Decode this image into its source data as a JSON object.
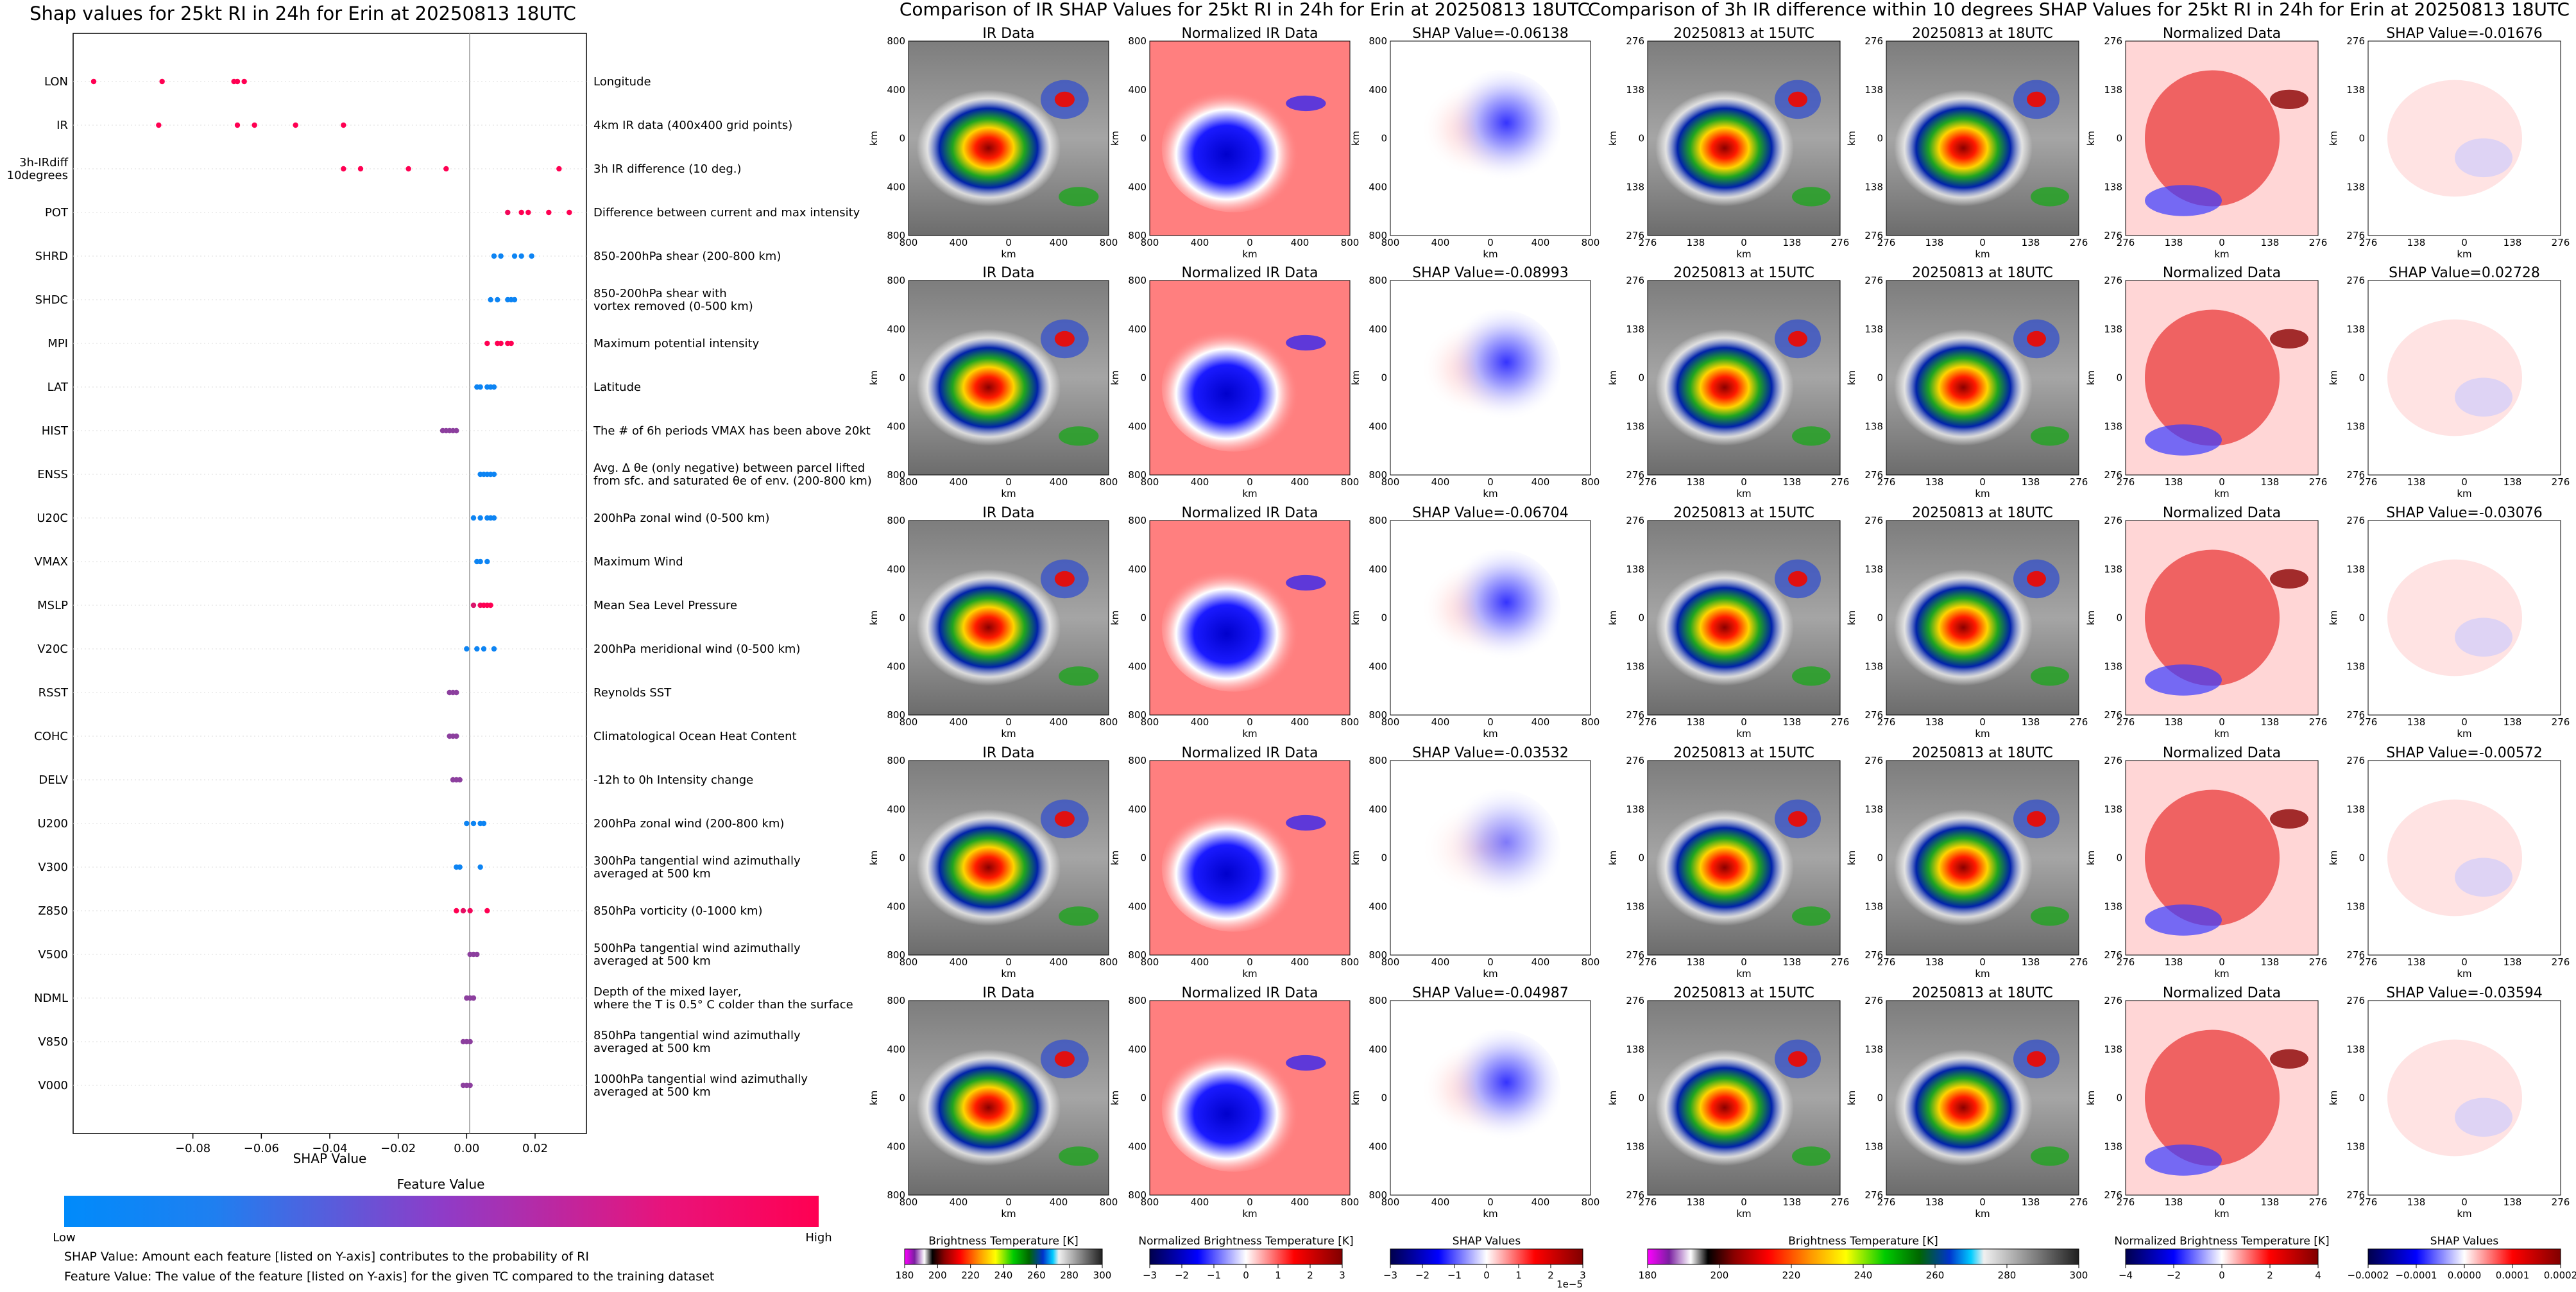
{
  "left_panel": {
    "title": "Shap values for 25kt RI in 24h for Erin at 20250813 18UTC",
    "xlabel": "SHAP Value",
    "xticks": [
      "−0.08",
      "−0.06",
      "−0.04",
      "−0.02",
      "0.00",
      "0.02"
    ],
    "colorbar_title": "Feature Value",
    "low_label": "Low",
    "high_label": "High",
    "note1": "SHAP Value: Amount each feature [listed on Y-axis] contributes to the probability of RI",
    "note2": "Feature Value: The value of the feature [listed on Y-axis] for the given TC compared to the training dataset"
  },
  "middle_panel": {
    "title": "Comparison of IR SHAP Values for 25kt RI in 24h for Erin at 20250813 18UTC",
    "col_titles": [
      "IR Data",
      "Normalized IR Data"
    ],
    "shap_titles": [
      "SHAP Value=-0.06138",
      "SHAP Value=-0.08993",
      "SHAP Value=-0.06704",
      "SHAP Value=-0.03532",
      "SHAP Value=-0.04987"
    ],
    "axis_label": "km",
    "ticks": [
      "800",
      "400",
      "0",
      "400",
      "800"
    ],
    "colorbars": [
      {
        "label": "Brightness Temperature [K]",
        "ticks": [
          "180",
          "200",
          "220",
          "240",
          "260",
          "280",
          "300"
        ]
      },
      {
        "label": "Normalized Brightness Temperature [K]",
        "ticks": [
          "−3",
          "−2",
          "−1",
          "0",
          "1",
          "2",
          "3"
        ]
      },
      {
        "label": "SHAP Values",
        "ticks": [
          "−3",
          "−2",
          "−1",
          "0",
          "1",
          "2",
          "3"
        ],
        "offset": "1e−5"
      }
    ]
  },
  "right_panel": {
    "title": "Comparison of 3h IR difference within 10 degrees SHAP Values for 25kt RI in 24h for Erin at 20250813 18UTC",
    "col_titles": [
      "20250813 at 15UTC",
      "20250813 at 18UTC",
      "Normalized Data"
    ],
    "shap_titles": [
      "SHAP Value=-0.01676",
      "SHAP Value=0.02728",
      "SHAP Value=-0.03076",
      "SHAP Value=-0.00572",
      "SHAP Value=-0.03594"
    ],
    "axis_label": "km",
    "ticks": [
      "276",
      "138",
      "0",
      "138",
      "276"
    ],
    "colorbars": [
      {
        "label": "Brightness Temperature [K]",
        "ticks": [
          "180",
          "200",
          "220",
          "240",
          "260",
          "280",
          "300"
        ]
      },
      {
        "label": "Normalized Brightness Temperature [K]",
        "ticks": [
          "−4",
          "−2",
          "0",
          "2",
          "4"
        ]
      },
      {
        "label": "SHAP Values",
        "ticks": [
          "−0.0002",
          "−0.0001",
          "0.0000",
          "0.0001",
          "0.0002"
        ]
      }
    ]
  },
  "chart_data": {
    "type": "scatter",
    "title": "Shap values for 25kt RI in 24h for Erin at 20250813 18UTC",
    "xlabel": "SHAP Value",
    "xlim": [
      -0.115,
      0.035
    ],
    "color_scale": {
      "low": "#008bfb",
      "high": "#ff0052",
      "title": "Feature Value"
    },
    "features": [
      {
        "name": "LON",
        "desc": "Longitude",
        "points": [
          [
            -0.109,
            1
          ],
          [
            -0.089,
            1
          ],
          [
            -0.068,
            1
          ],
          [
            -0.067,
            1
          ],
          [
            -0.065,
            1
          ]
        ]
      },
      {
        "name": "IR",
        "desc": "4km IR data (400x400 grid points)",
        "points": [
          [
            -0.09,
            1
          ],
          [
            -0.067,
            1
          ],
          [
            -0.062,
            1
          ],
          [
            -0.05,
            1
          ],
          [
            -0.036,
            1
          ]
        ]
      },
      {
        "name": "3h-IRdiff\n10degrees",
        "desc": "3h IR difference (10 deg.)",
        "points": [
          [
            -0.036,
            1
          ],
          [
            -0.031,
            1
          ],
          [
            -0.017,
            1
          ],
          [
            -0.006,
            1
          ],
          [
            0.027,
            1
          ]
        ]
      },
      {
        "name": "POT",
        "desc": "Difference between current and max intensity",
        "points": [
          [
            0.012,
            0.95
          ],
          [
            0.016,
            1
          ],
          [
            0.018,
            1
          ],
          [
            0.024,
            1
          ],
          [
            0.03,
            1
          ]
        ]
      },
      {
        "name": "SHRD",
        "desc": "850-200hPa shear (200-800 km)",
        "points": [
          [
            0.008,
            0.05
          ],
          [
            0.01,
            0.05
          ],
          [
            0.014,
            0.05
          ],
          [
            0.016,
            0.05
          ],
          [
            0.019,
            0.05
          ]
        ]
      },
      {
        "name": "SHDC",
        "desc": "850-200hPa shear with\nvortex removed (0-500 km)",
        "points": [
          [
            0.007,
            0.05
          ],
          [
            0.009,
            0.05
          ],
          [
            0.012,
            0.05
          ],
          [
            0.013,
            0.05
          ],
          [
            0.014,
            0.05
          ]
        ]
      },
      {
        "name": "MPI",
        "desc": "Maximum potential intensity",
        "points": [
          [
            0.006,
            1
          ],
          [
            0.009,
            1
          ],
          [
            0.01,
            1
          ],
          [
            0.012,
            1
          ],
          [
            0.013,
            1
          ]
        ]
      },
      {
        "name": "LAT",
        "desc": "Latitude",
        "points": [
          [
            0.003,
            0.05
          ],
          [
            0.004,
            0.05
          ],
          [
            0.006,
            0.05
          ],
          [
            0.007,
            0.05
          ],
          [
            0.008,
            0.05
          ]
        ]
      },
      {
        "name": "HIST",
        "desc": "The # of 6h periods VMAX has been above 20kt",
        "points": [
          [
            -0.007,
            0.55
          ],
          [
            -0.006,
            0.55
          ],
          [
            -0.005,
            0.55
          ],
          [
            -0.004,
            0.55
          ],
          [
            -0.003,
            0.55
          ]
        ]
      },
      {
        "name": "ENSS",
        "desc": "Avg. Δ θe (only negative) between parcel lifted\nfrom sfc. and saturated θe of env. (200-800 km)",
        "points": [
          [
            0.004,
            0.05
          ],
          [
            0.005,
            0.05
          ],
          [
            0.006,
            0.05
          ],
          [
            0.007,
            0.05
          ],
          [
            0.008,
            0.05
          ]
        ]
      },
      {
        "name": "U20C",
        "desc": "200hPa zonal wind (0-500 km)",
        "points": [
          [
            0.002,
            0.05
          ],
          [
            0.004,
            0.05
          ],
          [
            0.006,
            0.05
          ],
          [
            0.007,
            0.05
          ],
          [
            0.008,
            0.05
          ]
        ]
      },
      {
        "name": "VMAX",
        "desc": "Maximum Wind",
        "points": [
          [
            0.003,
            0.05
          ],
          [
            0.004,
            0.05
          ],
          [
            0.006,
            0.05
          ]
        ]
      },
      {
        "name": "MSLP",
        "desc": "Mean Sea Level Pressure",
        "points": [
          [
            0.002,
            0.85
          ],
          [
            0.004,
            0.95
          ],
          [
            0.005,
            1
          ],
          [
            0.006,
            1
          ],
          [
            0.007,
            1
          ]
        ]
      },
      {
        "name": "V20C",
        "desc": "200hPa meridional wind (0-500 km)",
        "points": [
          [
            0.0,
            0.05
          ],
          [
            0.003,
            0.05
          ],
          [
            0.005,
            0.05
          ],
          [
            0.008,
            0.05
          ]
        ]
      },
      {
        "name": "RSST",
        "desc": "Reynolds SST",
        "points": [
          [
            -0.005,
            0.55
          ],
          [
            -0.004,
            0.55
          ],
          [
            -0.003,
            0.55
          ]
        ]
      },
      {
        "name": "COHC",
        "desc": "Climatological Ocean Heat Content",
        "points": [
          [
            -0.005,
            0.55
          ],
          [
            -0.004,
            0.55
          ],
          [
            -0.003,
            0.55
          ]
        ]
      },
      {
        "name": "DELV",
        "desc": "-12h to 0h Intensity change",
        "points": [
          [
            -0.004,
            0.55
          ],
          [
            -0.003,
            0.55
          ],
          [
            -0.002,
            0.55
          ]
        ]
      },
      {
        "name": "U200",
        "desc": "200hPa zonal wind (200-800 km)",
        "points": [
          [
            0.0,
            0.05
          ],
          [
            0.002,
            0.05
          ],
          [
            0.004,
            0.05
          ],
          [
            0.005,
            0.05
          ]
        ]
      },
      {
        "name": "V300",
        "desc": "300hPa tangential wind azimuthally\naveraged at 500 km",
        "points": [
          [
            -0.003,
            0.05
          ],
          [
            -0.002,
            0.05
          ],
          [
            0.004,
            0.05
          ]
        ]
      },
      {
        "name": "Z850",
        "desc": "850hPa vorticity (0-1000 km)",
        "points": [
          [
            -0.003,
            1
          ],
          [
            -0.001,
            0.9
          ],
          [
            0.001,
            0.95
          ],
          [
            0.006,
            1
          ]
        ]
      },
      {
        "name": "V500",
        "desc": "500hPa tangential wind azimuthally\naveraged at 500 km",
        "points": [
          [
            0.001,
            0.55
          ],
          [
            0.002,
            0.55
          ],
          [
            0.003,
            0.55
          ]
        ]
      },
      {
        "name": "NDML",
        "desc": "Depth of the mixed layer,\nwhere the T is 0.5° C colder than the surface",
        "points": [
          [
            0.0,
            0.55
          ],
          [
            0.001,
            0.55
          ],
          [
            0.002,
            0.55
          ]
        ]
      },
      {
        "name": "V850",
        "desc": "850hPa tangential wind azimuthally\naveraged at 500 km",
        "points": [
          [
            -0.001,
            0.55
          ],
          [
            0.0,
            0.55
          ],
          [
            0.001,
            0.55
          ]
        ]
      },
      {
        "name": "V000",
        "desc": "1000hPa tangential wind azimuthally\naveraged at 500 km",
        "points": [
          [
            -0.001,
            0.55
          ],
          [
            0.0,
            0.55
          ],
          [
            0.001,
            0.55
          ]
        ]
      }
    ]
  }
}
